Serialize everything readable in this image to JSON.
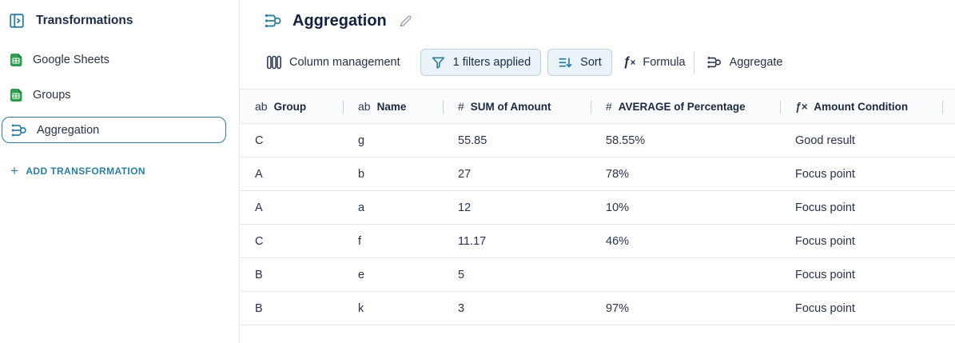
{
  "colors": {
    "accent_teal": "#2b7ea1",
    "dark_navy": "#1d2b45",
    "button_bg": "#e9f3f9",
    "button_border": "#bcd4e1",
    "sheets_green": "#2f9e50",
    "sheets_green_dark": "#1f803d",
    "row_divider": "#e0e5ec"
  },
  "sidebar": {
    "title": "Transformations",
    "items": [
      {
        "label": "Google Sheets",
        "icon": "sheets-icon",
        "selected": false
      },
      {
        "label": "Groups",
        "icon": "sheets-icon",
        "selected": false
      },
      {
        "label": "Aggregation",
        "icon": "aggregation-icon",
        "selected": true
      }
    ],
    "add_button_label": "ADD TRANSFORMATION",
    "add_button_plus": "+"
  },
  "header": {
    "title": "Aggregation",
    "edit_icon": "pencil-icon"
  },
  "toolbar": {
    "column_management_label": "Column management",
    "filters_label": "1 filters applied",
    "sort_label": "Sort",
    "formula_label": "Formula",
    "aggregate_label": "Aggregate"
  },
  "table": {
    "type_glyphs": {
      "text": "ab",
      "number": "#",
      "formula": "ƒ×"
    },
    "columns": [
      {
        "type": "text",
        "label": "Group"
      },
      {
        "type": "text",
        "label": "Name"
      },
      {
        "type": "number",
        "label": "SUM of Amount"
      },
      {
        "type": "number",
        "label": "AVERAGE of Percentage"
      },
      {
        "type": "formula",
        "label": "Amount Condition"
      }
    ],
    "rows": [
      [
        "C",
        "g",
        "55.85",
        "58.55%",
        "Good result"
      ],
      [
        "A",
        "b",
        "27",
        "78%",
        "Focus point"
      ],
      [
        "A",
        "a",
        "12",
        "10%",
        "Focus point"
      ],
      [
        "C",
        "f",
        "11.17",
        "46%",
        "Focus point"
      ],
      [
        "B",
        "e",
        "5",
        "",
        "Focus point"
      ],
      [
        "B",
        "k",
        "3",
        "97%",
        "Focus point"
      ]
    ]
  }
}
